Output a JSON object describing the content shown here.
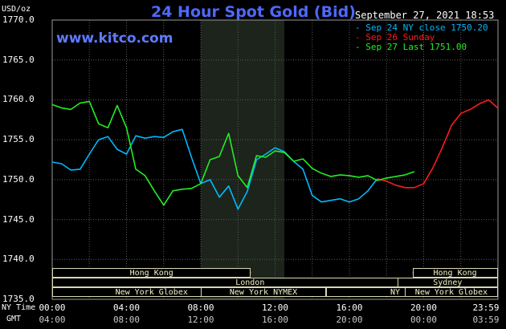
{
  "chart_data": {
    "type": "line",
    "title": "24 Hour Spot Gold (Bid)",
    "site": "www.kitco.com",
    "unit": "USD/oz",
    "date_label": "September 27, 2021 18:53",
    "ylim": [
      1735,
      1770
    ],
    "y_ticks": [
      "1770.0",
      "1765.0",
      "1760.0",
      "1755.0",
      "1750.0",
      "1745.0",
      "1740.0",
      "1735.0"
    ],
    "x_ticks_ny": [
      "00:00",
      "04:00",
      "08:00",
      "12:00",
      "16:00",
      "20:00",
      "23:59"
    ],
    "x_ticks_gmt": [
      "04:00",
      "08:00",
      "12:00",
      "16:00",
      "20:00",
      "00:00",
      "03:59"
    ],
    "x_row_labels": {
      "ny": "NY Time",
      "gmt": "GMT"
    },
    "grid": true,
    "legend_placement": "top-right",
    "highlight_region_hours": [
      8,
      12.5
    ],
    "series": [
      {
        "name": "Sep 24 NY close 1750.20",
        "color": "#00b8ff",
        "x": [
          0,
          0.5,
          1,
          1.5,
          2,
          2.5,
          3,
          3.5,
          4,
          4.5,
          5,
          5.5,
          6,
          6.5,
          7,
          7.5,
          8,
          8.5,
          9,
          9.5,
          10,
          10.5,
          11,
          11.5,
          12,
          12.5,
          13,
          13.5,
          14,
          14.5,
          15,
          15.5,
          16,
          16.5,
          17,
          17.5
        ],
        "y": [
          1752.2,
          1752.0,
          1751.2,
          1751.3,
          1753.2,
          1755.0,
          1755.4,
          1753.8,
          1753.2,
          1755.5,
          1755.2,
          1755.4,
          1755.3,
          1756.0,
          1756.3,
          1752.8,
          1749.5,
          1750.0,
          1747.8,
          1749.2,
          1746.3,
          1748.5,
          1752.5,
          1753.2,
          1754.0,
          1753.5,
          1752.3,
          1751.3,
          1748.0,
          1747.2,
          1747.4,
          1747.6,
          1747.2,
          1747.6,
          1748.6,
          1750.1
        ]
      },
      {
        "name": "Sep 26 Sunday",
        "color": "#ff1a1a",
        "x": [
          17.5,
          18,
          18.5,
          19,
          19.5,
          20,
          20.5,
          21,
          21.5,
          22,
          22.5,
          23,
          23.5,
          23.98
        ],
        "y": [
          1750.1,
          1749.8,
          1749.3,
          1749.0,
          1749.0,
          1749.5,
          1751.5,
          1754.0,
          1756.8,
          1758.3,
          1758.8,
          1759.5,
          1760.0,
          1759.0
        ]
      },
      {
        "name": "Sep 27 Last 1751.00",
        "color": "#22ee22",
        "x": [
          0,
          0.5,
          1,
          1.5,
          2,
          2.5,
          3,
          3.5,
          4,
          4.5,
          5,
          5.5,
          6,
          6.5,
          7,
          7.5,
          8,
          8.5,
          9,
          9.5,
          10,
          10.5,
          11,
          11.5,
          12,
          12.5,
          13,
          13.5,
          14,
          14.5,
          15,
          15.5,
          16,
          16.5,
          17,
          17.5,
          18,
          18.5,
          19,
          19.5
        ],
        "y": [
          1759.4,
          1759.0,
          1758.8,
          1759.6,
          1759.8,
          1757.0,
          1756.5,
          1759.3,
          1756.5,
          1751.3,
          1750.5,
          1748.6,
          1746.8,
          1748.6,
          1748.8,
          1748.9,
          1749.5,
          1752.5,
          1752.9,
          1755.8,
          1750.5,
          1749.0,
          1753.0,
          1752.8,
          1753.6,
          1753.4,
          1752.3,
          1752.6,
          1751.4,
          1750.8,
          1750.4,
          1750.6,
          1750.5,
          1750.3,
          1750.5,
          1749.9,
          1750.2,
          1750.4,
          1750.6,
          1751.0
        ]
      }
    ],
    "sessions": [
      {
        "label": "Hong Kong",
        "start": 0,
        "end": 10.7,
        "row": 0
      },
      {
        "label": "London",
        "start": 0,
        "end": 21.3,
        "row": 1
      },
      {
        "label": "New York Globex",
        "start": 0,
        "end": 10.7,
        "row": 2
      },
      {
        "label": "New York NYMEX",
        "start": 8.0,
        "end": 14.75,
        "row": 2
      },
      {
        "label": "NY Globex",
        "start": 14.75,
        "end": 24.0,
        "row": 2
      },
      {
        "label": "Hong Kong",
        "start": 19.4,
        "end": 23.98,
        "row": 0
      },
      {
        "label": "Sydney",
        "start": 18.6,
        "end": 23.98,
        "row": 1
      },
      {
        "label": "New York Globex",
        "start": 19.0,
        "end": 23.98,
        "row": 2
      }
    ]
  }
}
